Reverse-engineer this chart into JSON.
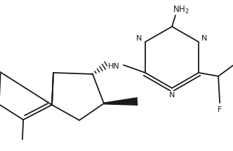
{
  "bg_color": "#ffffff",
  "line_color": "#1a1a1a",
  "line_width": 1.3,
  "font_size": 8.0,
  "fig_width": 3.32,
  "fig_height": 2.16,
  "dpi": 100,
  "xlim": [
    0,
    332
  ],
  "ylim": [
    0,
    216
  ]
}
